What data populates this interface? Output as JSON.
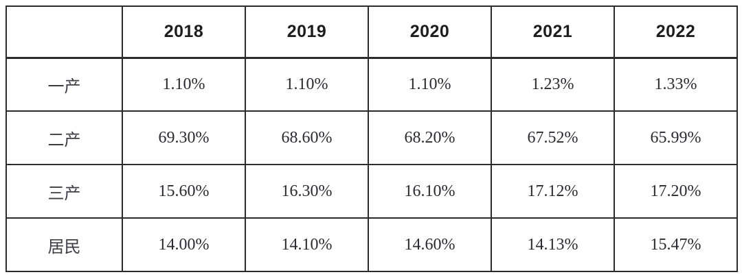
{
  "table": {
    "columns": [
      "",
      "2018",
      "2019",
      "2020",
      "2021",
      "2022"
    ],
    "rows": [
      {
        "label": "一产",
        "values": [
          "1.10%",
          "1.10%",
          "1.10%",
          "1.23%",
          "1.33%"
        ]
      },
      {
        "label": "二产",
        "values": [
          "69.30%",
          "68.60%",
          "68.20%",
          "67.52%",
          "65.99%"
        ]
      },
      {
        "label": "三产",
        "values": [
          "15.60%",
          "16.30%",
          "16.10%",
          "17.12%",
          "17.20%"
        ]
      },
      {
        "label": "居民",
        "values": [
          "14.00%",
          "14.10%",
          "14.60%",
          "14.13%",
          "15.47%"
        ]
      }
    ]
  },
  "chart_data": {
    "type": "table",
    "title": "",
    "unit": "%",
    "categories": [
      "2018",
      "2019",
      "2020",
      "2021",
      "2022"
    ],
    "series": [
      {
        "name": "一产",
        "values": [
          1.1,
          1.1,
          1.1,
          1.23,
          1.33
        ]
      },
      {
        "name": "二产",
        "values": [
          69.3,
          68.6,
          68.2,
          67.52,
          65.99
        ]
      },
      {
        "name": "三产",
        "values": [
          15.6,
          16.3,
          16.1,
          17.12,
          17.2
        ]
      },
      {
        "name": "居民",
        "values": [
          14.0,
          14.1,
          14.6,
          14.13,
          15.47
        ]
      }
    ]
  },
  "colors": {
    "border": "#2b2b2b",
    "header_text": "#1d1d20",
    "value_text": "#2a2a32",
    "background": "#ffffff"
  }
}
